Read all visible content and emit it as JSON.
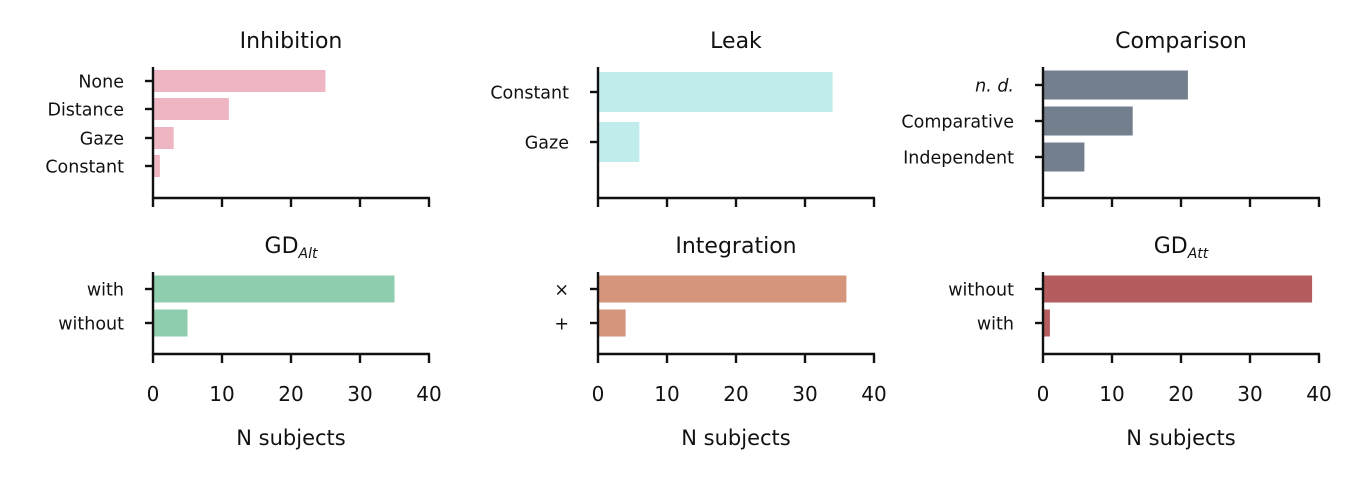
{
  "chart_data": [
    {
      "type": "bar",
      "orientation": "horizontal",
      "title": "Inhibition",
      "title_sub": "",
      "categories": [
        "None",
        "Distance",
        "Gaze",
        "Constant"
      ],
      "values": [
        25,
        11,
        3,
        1
      ],
      "color": "#eeb5c3",
      "xlim": [
        0,
        40
      ],
      "xticks": [
        "0",
        "10",
        "20",
        "30",
        "40"
      ],
      "show_tick_labels": false,
      "xlabel": ""
    },
    {
      "type": "bar",
      "orientation": "horizontal",
      "title": "Leak",
      "title_sub": "",
      "categories": [
        "Constant",
        "Gaze"
      ],
      "values": [
        34,
        6
      ],
      "color": "#c1ecec",
      "xlim": [
        0,
        40
      ],
      "xticks": [
        "0",
        "10",
        "20",
        "30",
        "40"
      ],
      "show_tick_labels": false,
      "xlabel": ""
    },
    {
      "type": "bar",
      "orientation": "horizontal",
      "title": "Comparison",
      "title_sub": "",
      "categories": [
        "n. d.",
        "Comparative",
        "Independent"
      ],
      "values": [
        21,
        13,
        6
      ],
      "color": "#737f8c",
      "xlim": [
        0,
        40
      ],
      "xticks": [
        "0",
        "10",
        "20",
        "30",
        "40"
      ],
      "show_tick_labels": false,
      "xlabel": ""
    },
    {
      "type": "bar",
      "orientation": "horizontal",
      "title": "GD",
      "title_sub": "Alt",
      "categories": [
        "with",
        "without"
      ],
      "values": [
        35,
        5
      ],
      "color": "#8ecdad",
      "xlim": [
        0,
        40
      ],
      "xticks": [
        "0",
        "10",
        "20",
        "30",
        "40"
      ],
      "show_tick_labels": true,
      "xlabel": "N subjects"
    },
    {
      "type": "bar",
      "orientation": "horizontal",
      "title": "Integration",
      "title_sub": "",
      "categories": [
        "×",
        "+"
      ],
      "values": [
        36,
        4
      ],
      "color": "#d5957b",
      "xlim": [
        0,
        40
      ],
      "xticks": [
        "0",
        "10",
        "20",
        "30",
        "40"
      ],
      "show_tick_labels": true,
      "xlabel": "N subjects"
    },
    {
      "type": "bar",
      "orientation": "horizontal",
      "title": "GD",
      "title_sub": "Att",
      "categories": [
        "without",
        "with"
      ],
      "values": [
        39,
        1
      ],
      "color": "#b55d5e",
      "xlim": [
        0,
        40
      ],
      "xticks": [
        "0",
        "10",
        "20",
        "30",
        "40"
      ],
      "show_tick_labels": true,
      "xlabel": "N subjects"
    }
  ]
}
